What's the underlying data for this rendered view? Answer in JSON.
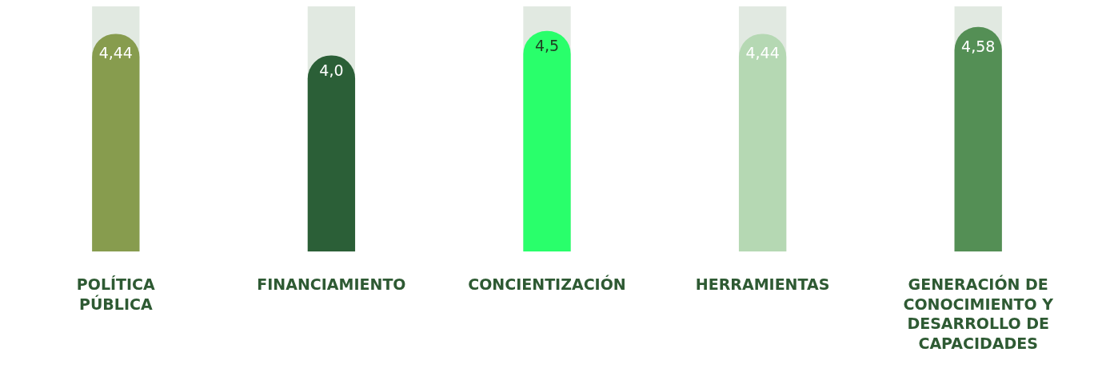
{
  "chart_data": {
    "type": "bar",
    "categories": [
      "POLÍTICA PÚBLICA",
      "FINANCIAMIENTO",
      "CONCIENTIZACIÓN",
      "HERRAMIENTAS",
      "GENERACIÓN DE CONOCIMIENTO Y DESARROLLO DE CAPACIDADES"
    ],
    "values": [
      4.44,
      4.0,
      4.5,
      4.44,
      4.58
    ],
    "value_labels": [
      "4,44",
      "4,0",
      "4,5",
      "4,44",
      "4,58"
    ],
    "colors": [
      "#879c4e",
      "#2b5f37",
      "#29ff6b",
      "#b5d8b3",
      "#548f55"
    ],
    "ylim": [
      0,
      5
    ],
    "grid": false,
    "tick_labels": "x"
  }
}
